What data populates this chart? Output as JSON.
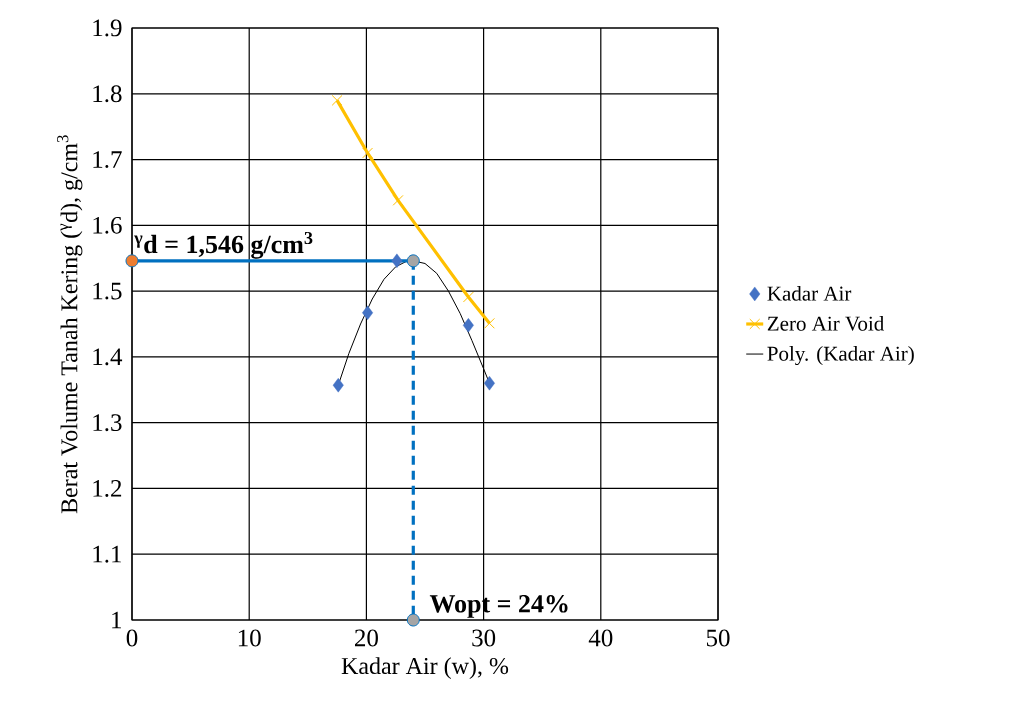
{
  "chart_data": {
    "type": "line",
    "xlabel": "Kadar  Air (w), %",
    "ylabel": "Berat Volume Tanah Kering ($^{γ}$d), g/cm$^{3}$",
    "xlim": [
      0,
      50
    ],
    "ylim": [
      1.0,
      1.9
    ],
    "xticks": [
      0,
      10,
      20,
      30,
      40,
      50
    ],
    "yticks": [
      1,
      1.1,
      1.2,
      1.3,
      1.4,
      1.5,
      1.6,
      1.7,
      1.8,
      1.9
    ],
    "grid": true,
    "legend": "right",
    "series": [
      {
        "name": "Kadar Air",
        "type": "scatter",
        "marker": "diamond",
        "color": "#4472c4",
        "x": [
          17.6,
          20.1,
          22.6,
          28.7,
          30.5
        ],
        "values": [
          1.357,
          1.467,
          1.546,
          1.448,
          1.36
        ]
      },
      {
        "name": "Zero Air Void",
        "marker": "cross",
        "color": "#ffc000",
        "x": [
          17.5,
          20.1,
          22.7,
          28.7,
          30.5
        ],
        "values": [
          1.79,
          1.71,
          1.638,
          1.491,
          1.451
        ]
      },
      {
        "name": "Poly. (Kadar Air)",
        "marker": "none",
        "color": "#000000",
        "x": [
          17.6,
          18.5,
          19.5,
          20.5,
          21.5,
          22.5,
          23.5,
          24.0,
          25.0,
          26.0,
          27.0,
          28.0,
          29.0,
          30.0,
          30.5
        ],
        "values": [
          1.357,
          1.405,
          1.45,
          1.488,
          1.518,
          1.537,
          1.546,
          1.546,
          1.542,
          1.527,
          1.5,
          1.466,
          1.425,
          1.382,
          1.36
        ]
      },
      {
        "marker": "none",
        "color": "#0070c0",
        "x": [
          0,
          24
        ],
        "values": [
          1.546,
          1.546
        ]
      },
      {
        "marker": "none",
        "line_style": "dashed",
        "color": "#0070c0",
        "x": [
          24,
          24
        ],
        "values": [
          1.546,
          1.0
        ]
      },
      {
        "type": "scatter",
        "marker": "circle",
        "color": "#ed7d31",
        "x": [
          0
        ],
        "values": [
          1.546
        ]
      },
      {
        "type": "scatter",
        "marker": "circle",
        "color": "#a5a5a5",
        "x": [
          24,
          24
        ],
        "values": [
          1.546,
          1.0
        ]
      }
    ],
    "annotations": [
      {
        "text": "$^{γ}$d = 1,546 g/cm$^{3}$",
        "x": 0,
        "y": 1.546
      },
      {
        "text": "Wopt = 24%",
        "x": 24,
        "y": 1.0
      }
    ]
  }
}
